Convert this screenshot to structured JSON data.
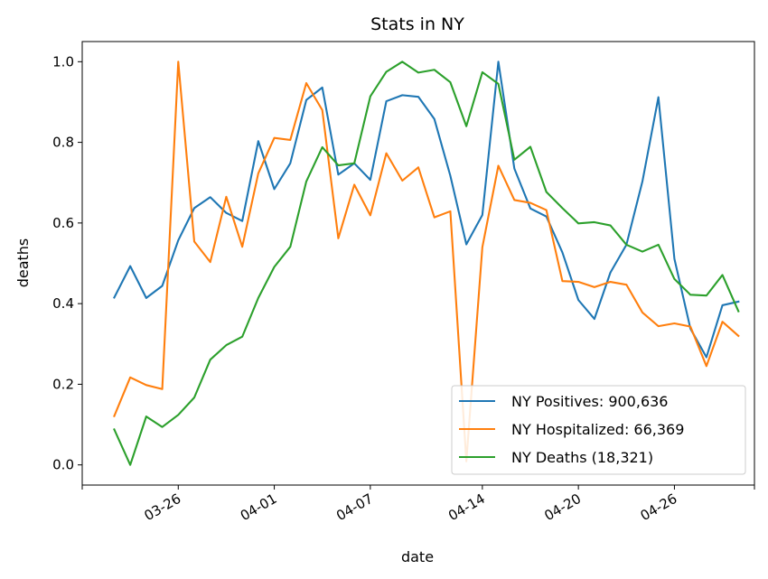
{
  "chart_data": {
    "type": "line",
    "title": "Stats in NY",
    "xlabel": "date",
    "ylabel": "deaths",
    "ylim": [
      -0.05,
      1.05
    ],
    "yticks": [
      0.0,
      0.2,
      0.4,
      0.6,
      0.8,
      1.0
    ],
    "ytick_labels": [
      "0.0",
      "0.2",
      "0.4",
      "0.6",
      "0.8",
      "1.0"
    ],
    "x_range": [
      "2020-03-20",
      "2020-05-01"
    ],
    "x": [
      "2020-03-22",
      "2020-03-23",
      "2020-03-24",
      "2020-03-25",
      "2020-03-26",
      "2020-03-27",
      "2020-03-28",
      "2020-03-29",
      "2020-03-30",
      "2020-03-31",
      "2020-04-01",
      "2020-04-02",
      "2020-04-03",
      "2020-04-04",
      "2020-04-05",
      "2020-04-06",
      "2020-04-07",
      "2020-04-08",
      "2020-04-09",
      "2020-04-10",
      "2020-04-11",
      "2020-04-12",
      "2020-04-13",
      "2020-04-14",
      "2020-04-15",
      "2020-04-16",
      "2020-04-17",
      "2020-04-18",
      "2020-04-19",
      "2020-04-20",
      "2020-04-21",
      "2020-04-22",
      "2020-04-23",
      "2020-04-24",
      "2020-04-25",
      "2020-04-26",
      "2020-04-27",
      "2020-04-28",
      "2020-04-29",
      "2020-04-30"
    ],
    "xticks": [
      "2020-03-20",
      "2020-03-26",
      "2020-04-01",
      "2020-04-07",
      "2020-04-14",
      "2020-04-20",
      "2020-04-26",
      "2020-05-01"
    ],
    "xtick_labels": [
      "",
      "03-26",
      "04-01",
      "04-07",
      "04-14",
      "04-20",
      "04-26",
      ""
    ],
    "legend_position": "lower-right",
    "series": [
      {
        "name": "NY Positives: 900,636",
        "color": "#1f77b4",
        "values": [
          0.415,
          0.493,
          0.414,
          0.444,
          0.557,
          0.637,
          0.664,
          0.625,
          0.605,
          0.803,
          0.684,
          0.748,
          0.905,
          0.936,
          0.72,
          0.748,
          0.707,
          0.902,
          0.917,
          0.913,
          0.858,
          0.717,
          0.547,
          0.62,
          1.0,
          0.735,
          0.636,
          0.616,
          0.527,
          0.409,
          0.362,
          0.477,
          0.546,
          0.703,
          0.912,
          0.511,
          0.338,
          0.267,
          0.396,
          0.405
        ]
      },
      {
        "name": "NY Hospitalized: 66,369",
        "color": "#ff7f0e",
        "values": [
          0.121,
          0.217,
          0.198,
          0.188,
          1.0,
          0.554,
          0.503,
          0.665,
          0.541,
          0.723,
          0.811,
          0.806,
          0.947,
          0.88,
          0.562,
          0.695,
          0.619,
          0.773,
          0.705,
          0.738,
          0.614,
          0.629,
          0.009,
          0.54,
          0.742,
          0.657,
          0.65,
          0.632,
          0.456,
          0.454,
          0.441,
          0.454,
          0.447,
          0.378,
          0.344,
          0.351,
          0.343,
          0.245,
          0.355,
          0.32
        ]
      },
      {
        "name": "NY Deaths (18,321)",
        "color": "#2ca02c",
        "values": [
          0.088,
          0.0,
          0.12,
          0.094,
          0.124,
          0.167,
          0.261,
          0.297,
          0.318,
          0.414,
          0.491,
          0.541,
          0.703,
          0.788,
          0.743,
          0.748,
          0.914,
          0.975,
          1.0,
          0.973,
          0.98,
          0.949,
          0.84,
          0.974,
          0.945,
          0.757,
          0.789,
          0.677,
          0.637,
          0.599,
          0.602,
          0.594,
          0.546,
          0.529,
          0.546,
          0.461,
          0.422,
          0.42,
          0.471,
          0.381
        ]
      }
    ]
  }
}
